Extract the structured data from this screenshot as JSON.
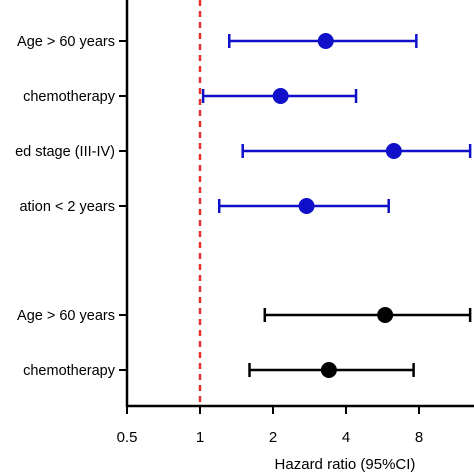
{
  "chart_data": {
    "type": "forest",
    "xlabel": "Hazard ratio (95%CI)",
    "x_scale": "log2",
    "xlim": [
      0.5,
      13
    ],
    "x_ticks": [
      0.5,
      1,
      2,
      4,
      8
    ],
    "x_tick_labels": [
      "0.5",
      "1",
      "2",
      "4",
      "8"
    ],
    "reference_line": 1,
    "reference_color": "#e8312f",
    "grid": false,
    "rows": [
      {
        "label": "Age > 60 years",
        "hr": 3.3,
        "lo": 1.32,
        "hi": 7.8,
        "color": "#1010c8",
        "group": 1
      },
      {
        "label": "chemotherapy",
        "hr": 2.15,
        "lo": 1.03,
        "hi": 4.4,
        "color": "#1010c8",
        "group": 1
      },
      {
        "label": "ed stage (III-IV)",
        "hr": 6.3,
        "lo": 1.5,
        "hi": 13,
        "color": "#1010c8",
        "group": 1
      },
      {
        "label": "ation < 2 years",
        "hr": 2.75,
        "lo": 1.2,
        "hi": 6.0,
        "color": "#1010c8",
        "group": 1
      },
      {
        "label": "Age > 60 years",
        "hr": 5.8,
        "lo": 1.85,
        "hi": 13,
        "color": "#000000",
        "group": 2
      },
      {
        "label": "chemotherapy",
        "hr": 3.4,
        "lo": 1.6,
        "hi": 7.6,
        "color": "#000000",
        "group": 2
      }
    ]
  }
}
